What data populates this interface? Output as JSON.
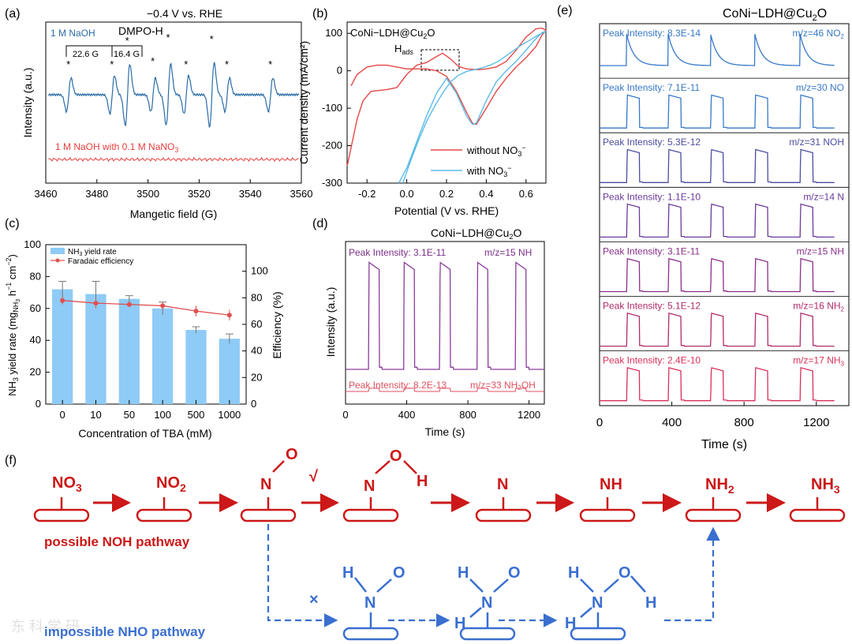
{
  "panel_a": {
    "letter": "(a)",
    "potential": "−0.4 V vs. RHE",
    "spin": "DMPO-H",
    "s1": "1 M NaOH",
    "s2": "1 M NaOH with 0.1 M NaNO",
    "s2_sub": "3",
    "split1": "22.6 G",
    "split2": "16.4 G",
    "xlabel": "Mangetic field (G)",
    "ylabel": "Intensity (a.u.)",
    "star": "*"
  },
  "panel_b": {
    "letter": "(b)",
    "sample": "CoNi−LDH@Cu",
    "sample_sub": "2",
    "sample_end": "O",
    "hads": "H",
    "hads_sub": "ads",
    "xlabel": "Potential (V vs. RHE)",
    "ylabel": "Current density (mA/cm²)",
    "leg1": "without NO",
    "leg2": "with NO",
    "leg_sub": "3",
    "leg_sup": "−"
  },
  "panel_c": {
    "letter": "(c)",
    "xlabel": "Concentration of TBA (mM)",
    "ylabel_a": "NH",
    "ylabel_b": " yield rate (mg",
    "ylabel_c": "NH",
    "ylabel_d": " h",
    "ylabel_e": " cm",
    "ylabel_f": ")",
    "sub3": "3",
    "supm1": "−1",
    "supm2": "−2",
    "y2label": "Efficiency (%)",
    "leg1a": "NH",
    "leg1b": " yield rate",
    "leg2": "Faradaic efficiency"
  },
  "panel_d": {
    "letter": "(d)",
    "sample": "CoNi−LDH@Cu",
    "sample_sub": "2",
    "sample_end": "O",
    "xlabel": "Time (s)",
    "ylabel": "Intensity (a.u.)",
    "t1_peak": "Peak Intensity: 3.1E-11",
    "t1_mz": "m/z=15 NH",
    "t2_peak": "Peak Intensity: 8.2E-13",
    "t2_mz": "m/z=33 NH",
    "t2_sub": "2",
    "t2_end": "OH"
  },
  "panel_e": {
    "letter": "(e)",
    "sample": "CoNi−LDH@Cu",
    "sample_sub": "2",
    "sample_end": "O",
    "xlabel": "Time (s)"
  },
  "panel_f": {
    "letter": "(f)",
    "noh": "possible NOH pathway",
    "nho": "impossible NHO pathway",
    "check": "√",
    "cross": "×",
    "watermark": "东 科 学 研"
  },
  "chart_data": [
    {
      "type": "line",
      "title": "DMPO-H",
      "xlabel": "Mangetic field (G)",
      "ylabel": "Intensity (a.u.)",
      "xlim": [
        3460,
        3560
      ],
      "xticks": [
        3460,
        3480,
        3500,
        3520,
        3540,
        3560
      ],
      "series": [
        {
          "name": "1 M NaOH",
          "peaks_G": [
            3469,
            3486,
            3492,
            3502,
            3508,
            3515,
            3525,
            3531,
            3548
          ]
        },
        {
          "name": "1 M NaOH with 0.1 M NaNO3",
          "peaks_G": []
        }
      ]
    },
    {
      "type": "line",
      "xlabel": "Potential (V vs. RHE)",
      "ylabel": "Current density (mA/cm2)",
      "xlim": [
        -0.3,
        0.7
      ],
      "ylim": [
        -300,
        130
      ],
      "xticks": [
        -0.2,
        0.0,
        0.2,
        0.4,
        0.6
      ],
      "yticks": [
        -300,
        -200,
        -100,
        0,
        100
      ],
      "series": [
        {
          "name": "without NO3−",
          "x": [
            -0.3,
            -0.25,
            -0.22,
            -0.18,
            -0.1,
            -0.05,
            0.0,
            0.05,
            0.1,
            0.15,
            0.18,
            0.22,
            0.26,
            0.3,
            0.36,
            0.4,
            0.45,
            0.5,
            0.55,
            0.6,
            0.65,
            0.68,
            0.7,
            0.68,
            0.65,
            0.6,
            0.55,
            0.5,
            0.45,
            0.4,
            0.35,
            0.33,
            0.3,
            0.25,
            0.2,
            0.15,
            0.1,
            0.05,
            0.0,
            -0.05,
            -0.1,
            -0.15,
            -0.2,
            -0.25,
            -0.28
          ],
          "y": [
            -255,
            -130,
            -80,
            -55,
            -50,
            -45,
            -10,
            15,
            22,
            38,
            47,
            32,
            12,
            5,
            3,
            5,
            10,
            25,
            55,
            90,
            112,
            114,
            108,
            95,
            65,
            35,
            10,
            -20,
            -55,
            -100,
            -143,
            -140,
            -110,
            -55,
            -15,
            0,
            5,
            5,
            5,
            10,
            15,
            15,
            10,
            -10,
            -40
          ]
        },
        {
          "name": "with NO3−",
          "x": [
            -0.02,
            0.02,
            0.06,
            0.1,
            0.14,
            0.18,
            0.22,
            0.26,
            0.3,
            0.34,
            0.38,
            0.42,
            0.46,
            0.5,
            0.54,
            0.58,
            0.62,
            0.66,
            0.7,
            0.68,
            0.64,
            0.6,
            0.55,
            0.5,
            0.45,
            0.4,
            0.35,
            0.33,
            0.3,
            0.25,
            0.2,
            0.15,
            0.1,
            0.05,
            0.0,
            -0.04
          ],
          "y": [
            -300,
            -240,
            -185,
            -135,
            -95,
            -60,
            -30,
            -12,
            -2,
            3,
            8,
            15,
            25,
            40,
            55,
            70,
            82,
            95,
            105,
            102,
            80,
            55,
            25,
            0,
            -30,
            -80,
            -140,
            -143,
            -120,
            -60,
            -20,
            -60,
            -120,
            -190,
            -260,
            -300
          ]
        }
      ]
    },
    {
      "type": "bar",
      "categories": [
        "0",
        "10",
        "50",
        "100",
        "500",
        "1000"
      ],
      "xlabel": "Concentration of TBA (mM)",
      "ylabel": "NH3 yield rate (mgNH3 h−1 cm−2)",
      "ylim": [
        0,
        100
      ],
      "y2label": "Efficiency (%)",
      "y2lim": [
        0,
        120
      ],
      "series": [
        {
          "name": "NH3 yield rate",
          "values": [
            72,
            69,
            66,
            60,
            46.5,
            41
          ],
          "errors": [
            5,
            8,
            2,
            4,
            2,
            3
          ]
        },
        {
          "name": "Faradaic efficiency",
          "values": [
            78,
            76,
            75,
            74,
            70,
            67
          ],
          "errors": [
            3,
            4,
            2,
            3,
            4,
            4
          ]
        }
      ]
    },
    {
      "type": "line",
      "xlabel": "Time (s)",
      "ylabel": "Intensity (a.u.)",
      "xlim": [
        0,
        1300
      ],
      "xticks": [
        0,
        400,
        800,
        1200
      ],
      "pulse_starts_s": [
        150,
        380,
        615,
        860,
        1110
      ],
      "series": [
        {
          "name": "m/z=15 NH",
          "peak_intensity": "3.1E-11"
        },
        {
          "name": "m/z=33 NH2OH",
          "peak_intensity": "8.2E-13"
        }
      ]
    },
    {
      "type": "line",
      "xlabel": "Time (s)",
      "xlim": [
        0,
        1380
      ],
      "xticks": [
        0,
        400,
        800,
        1200
      ],
      "pulse_starts_s": [
        150,
        380,
        615,
        860,
        1110
      ],
      "series": [
        {
          "name": "m/z=46 NO2",
          "peak_intensity": "8.3E-14",
          "color": "#3878c8"
        },
        {
          "name": "m/z=30 NO",
          "peak_intensity": "7.1E-11",
          "color": "#3878c8"
        },
        {
          "name": "m/z=31 NOH",
          "peak_intensity": "5.3E-12",
          "color": "#4a4ca0"
        },
        {
          "name": "m/z=14 N",
          "peak_intensity": "1.1E-10",
          "color": "#6a3a9a"
        },
        {
          "name": "m/z=15 NH",
          "peak_intensity": "3.1E-11",
          "color": "#8a2e8a"
        },
        {
          "name": "m/z=16 NH2",
          "peak_intensity": "5.1E-12",
          "color": "#b02a6a"
        },
        {
          "name": "m/z=17 NH3",
          "peak_intensity": "2.4E-10",
          "color": "#d8305a"
        }
      ]
    }
  ],
  "colors": {
    "red": "#cc1818",
    "blue": "#3a6fd0",
    "epr": "#2b6ca8",
    "bar": "#8ecbf6",
    "fe": "#e05050",
    "cv_red": "#e64848",
    "cv_blue": "#5bbce8"
  }
}
